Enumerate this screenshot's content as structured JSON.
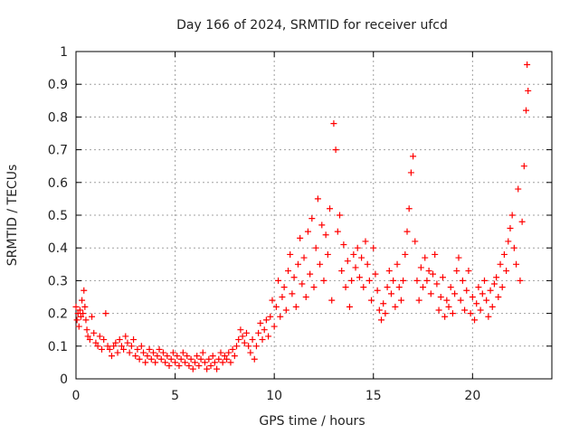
{
  "chart_data": {
    "type": "scatter",
    "title": "Day 166 of 2024, SRMTID for receiver ufcd",
    "xlabel": "GPS time / hours",
    "ylabel": "SRMTID / TECUs",
    "xlim": [
      0,
      24
    ],
    "ylim": [
      0,
      1
    ],
    "xticks": [
      0,
      5,
      10,
      15,
      20
    ],
    "yticks": [
      0,
      0.1,
      0.2,
      0.3,
      0.4,
      0.5,
      0.6,
      0.7,
      0.8,
      0.9,
      1
    ],
    "xtick_labels": [
      "0",
      "5",
      "10",
      "15",
      "20"
    ],
    "ytick_labels": [
      "0",
      "0.1",
      "0.2",
      "0.3",
      "0.4",
      "0.5",
      "0.6",
      "0.7",
      "0.8",
      "0.9",
      "1"
    ],
    "grid": true,
    "marker": "+",
    "series": [
      {
        "name": "SRMTID",
        "color": "#ff0000",
        "points": [
          [
            0.0,
            0.22
          ],
          [
            0.05,
            0.18
          ],
          [
            0.1,
            0.2
          ],
          [
            0.15,
            0.16
          ],
          [
            0.2,
            0.21
          ],
          [
            0.25,
            0.19
          ],
          [
            0.3,
            0.24
          ],
          [
            0.35,
            0.2
          ],
          [
            0.4,
            0.27
          ],
          [
            0.45,
            0.22
          ],
          [
            0.5,
            0.18
          ],
          [
            0.55,
            0.15
          ],
          [
            0.6,
            0.13
          ],
          [
            0.7,
            0.12
          ],
          [
            0.8,
            0.19
          ],
          [
            0.9,
            0.14
          ],
          [
            1.0,
            0.11
          ],
          [
            1.1,
            0.1
          ],
          [
            1.2,
            0.13
          ],
          [
            1.3,
            0.09
          ],
          [
            1.4,
            0.12
          ],
          [
            1.5,
            0.2
          ],
          [
            1.6,
            0.1
          ],
          [
            1.7,
            0.09
          ],
          [
            1.8,
            0.07
          ],
          [
            1.9,
            0.1
          ],
          [
            2.0,
            0.11
          ],
          [
            2.1,
            0.08
          ],
          [
            2.2,
            0.12
          ],
          [
            2.3,
            0.1
          ],
          [
            2.4,
            0.09
          ],
          [
            2.5,
            0.13
          ],
          [
            2.6,
            0.11
          ],
          [
            2.7,
            0.08
          ],
          [
            2.8,
            0.1
          ],
          [
            2.9,
            0.12
          ],
          [
            3.0,
            0.07
          ],
          [
            3.1,
            0.09
          ],
          [
            3.2,
            0.06
          ],
          [
            3.3,
            0.1
          ],
          [
            3.4,
            0.08
          ],
          [
            3.5,
            0.05
          ],
          [
            3.6,
            0.07
          ],
          [
            3.7,
            0.09
          ],
          [
            3.8,
            0.06
          ],
          [
            3.9,
            0.08
          ],
          [
            4.0,
            0.05
          ],
          [
            4.1,
            0.07
          ],
          [
            4.2,
            0.09
          ],
          [
            4.3,
            0.06
          ],
          [
            4.4,
            0.08
          ],
          [
            4.5,
            0.05
          ],
          [
            4.6,
            0.07
          ],
          [
            4.7,
            0.04
          ],
          [
            4.8,
            0.06
          ],
          [
            4.9,
            0.08
          ],
          [
            5.0,
            0.05
          ],
          [
            5.1,
            0.07
          ],
          [
            5.2,
            0.04
          ],
          [
            5.3,
            0.06
          ],
          [
            5.4,
            0.08
          ],
          [
            5.5,
            0.05
          ],
          [
            5.6,
            0.07
          ],
          [
            5.7,
            0.04
          ],
          [
            5.8,
            0.06
          ],
          [
            5.9,
            0.03
          ],
          [
            6.0,
            0.05
          ],
          [
            6.1,
            0.07
          ],
          [
            6.2,
            0.04
          ],
          [
            6.3,
            0.06
          ],
          [
            6.4,
            0.08
          ],
          [
            6.5,
            0.05
          ],
          [
            6.6,
            0.03
          ],
          [
            6.7,
            0.06
          ],
          [
            6.8,
            0.04
          ],
          [
            6.9,
            0.07
          ],
          [
            7.0,
            0.05
          ],
          [
            7.1,
            0.03
          ],
          [
            7.2,
            0.06
          ],
          [
            7.3,
            0.08
          ],
          [
            7.4,
            0.05
          ],
          [
            7.5,
            0.07
          ],
          [
            7.6,
            0.06
          ],
          [
            7.7,
            0.08
          ],
          [
            7.8,
            0.05
          ],
          [
            7.9,
            0.09
          ],
          [
            8.0,
            0.07
          ],
          [
            8.1,
            0.1
          ],
          [
            8.2,
            0.12
          ],
          [
            8.3,
            0.15
          ],
          [
            8.4,
            0.13
          ],
          [
            8.5,
            0.11
          ],
          [
            8.6,
            0.14
          ],
          [
            8.7,
            0.1
          ],
          [
            8.8,
            0.08
          ],
          [
            8.9,
            0.12
          ],
          [
            9.0,
            0.06
          ],
          [
            9.1,
            0.1
          ],
          [
            9.2,
            0.14
          ],
          [
            9.3,
            0.17
          ],
          [
            9.4,
            0.12
          ],
          [
            9.5,
            0.15
          ],
          [
            9.6,
            0.18
          ],
          [
            9.7,
            0.13
          ],
          [
            9.8,
            0.19
          ],
          [
            9.9,
            0.24
          ],
          [
            10.0,
            0.16
          ],
          [
            10.1,
            0.22
          ],
          [
            10.2,
            0.3
          ],
          [
            10.3,
            0.19
          ],
          [
            10.4,
            0.25
          ],
          [
            10.5,
            0.28
          ],
          [
            10.6,
            0.21
          ],
          [
            10.7,
            0.33
          ],
          [
            10.8,
            0.38
          ],
          [
            10.9,
            0.26
          ],
          [
            11.0,
            0.31
          ],
          [
            11.1,
            0.22
          ],
          [
            11.2,
            0.35
          ],
          [
            11.3,
            0.43
          ],
          [
            11.4,
            0.29
          ],
          [
            11.5,
            0.37
          ],
          [
            11.6,
            0.25
          ],
          [
            11.7,
            0.45
          ],
          [
            11.8,
            0.32
          ],
          [
            11.9,
            0.49
          ],
          [
            12.0,
            0.28
          ],
          [
            12.1,
            0.4
          ],
          [
            12.2,
            0.55
          ],
          [
            12.3,
            0.35
          ],
          [
            12.4,
            0.47
          ],
          [
            12.5,
            0.3
          ],
          [
            12.6,
            0.44
          ],
          [
            12.7,
            0.38
          ],
          [
            12.8,
            0.52
          ],
          [
            12.9,
            0.24
          ],
          [
            13.0,
            0.78
          ],
          [
            13.1,
            0.7
          ],
          [
            13.2,
            0.45
          ],
          [
            13.3,
            0.5
          ],
          [
            13.4,
            0.33
          ],
          [
            13.5,
            0.41
          ],
          [
            13.6,
            0.28
          ],
          [
            13.7,
            0.36
          ],
          [
            13.8,
            0.22
          ],
          [
            13.9,
            0.3
          ],
          [
            14.0,
            0.38
          ],
          [
            14.1,
            0.34
          ],
          [
            14.2,
            0.4
          ],
          [
            14.3,
            0.31
          ],
          [
            14.4,
            0.37
          ],
          [
            14.5,
            0.28
          ],
          [
            14.6,
            0.42
          ],
          [
            14.7,
            0.35
          ],
          [
            14.8,
            0.3
          ],
          [
            14.9,
            0.24
          ],
          [
            15.0,
            0.4
          ],
          [
            15.1,
            0.32
          ],
          [
            15.2,
            0.27
          ],
          [
            15.3,
            0.21
          ],
          [
            15.4,
            0.18
          ],
          [
            15.5,
            0.23
          ],
          [
            15.6,
            0.2
          ],
          [
            15.7,
            0.28
          ],
          [
            15.8,
            0.33
          ],
          [
            15.9,
            0.26
          ],
          [
            16.0,
            0.3
          ],
          [
            16.1,
            0.22
          ],
          [
            16.2,
            0.35
          ],
          [
            16.3,
            0.28
          ],
          [
            16.4,
            0.24
          ],
          [
            16.5,
            0.3
          ],
          [
            16.6,
            0.38
          ],
          [
            16.7,
            0.45
          ],
          [
            16.8,
            0.52
          ],
          [
            16.9,
            0.63
          ],
          [
            17.0,
            0.68
          ],
          [
            17.1,
            0.42
          ],
          [
            17.2,
            0.3
          ],
          [
            17.3,
            0.24
          ],
          [
            17.4,
            0.34
          ],
          [
            17.5,
            0.28
          ],
          [
            17.6,
            0.37
          ],
          [
            17.7,
            0.3
          ],
          [
            17.8,
            0.33
          ],
          [
            17.9,
            0.26
          ],
          [
            18.0,
            0.32
          ],
          [
            18.1,
            0.38
          ],
          [
            18.2,
            0.29
          ],
          [
            18.3,
            0.21
          ],
          [
            18.4,
            0.25
          ],
          [
            18.5,
            0.31
          ],
          [
            18.6,
            0.19
          ],
          [
            18.7,
            0.24
          ],
          [
            18.8,
            0.22
          ],
          [
            18.9,
            0.28
          ],
          [
            19.0,
            0.2
          ],
          [
            19.1,
            0.26
          ],
          [
            19.2,
            0.33
          ],
          [
            19.3,
            0.37
          ],
          [
            19.4,
            0.24
          ],
          [
            19.5,
            0.3
          ],
          [
            19.6,
            0.21
          ],
          [
            19.7,
            0.27
          ],
          [
            19.8,
            0.33
          ],
          [
            19.9,
            0.2
          ],
          [
            20.0,
            0.25
          ],
          [
            20.1,
            0.18
          ],
          [
            20.2,
            0.23
          ],
          [
            20.3,
            0.28
          ],
          [
            20.4,
            0.21
          ],
          [
            20.5,
            0.26
          ],
          [
            20.6,
            0.3
          ],
          [
            20.7,
            0.24
          ],
          [
            20.8,
            0.19
          ],
          [
            20.9,
            0.27
          ],
          [
            21.0,
            0.22
          ],
          [
            21.1,
            0.29
          ],
          [
            21.2,
            0.31
          ],
          [
            21.3,
            0.25
          ],
          [
            21.4,
            0.35
          ],
          [
            21.5,
            0.28
          ],
          [
            21.6,
            0.38
          ],
          [
            21.7,
            0.33
          ],
          [
            21.8,
            0.42
          ],
          [
            21.9,
            0.46
          ],
          [
            22.0,
            0.5
          ],
          [
            22.1,
            0.4
          ],
          [
            22.2,
            0.35
          ],
          [
            22.3,
            0.58
          ],
          [
            22.4,
            0.3
          ],
          [
            22.5,
            0.48
          ],
          [
            22.6,
            0.65
          ],
          [
            22.7,
            0.82
          ],
          [
            22.75,
            0.96
          ],
          [
            22.8,
            0.88
          ]
        ]
      }
    ],
    "annotations": []
  }
}
